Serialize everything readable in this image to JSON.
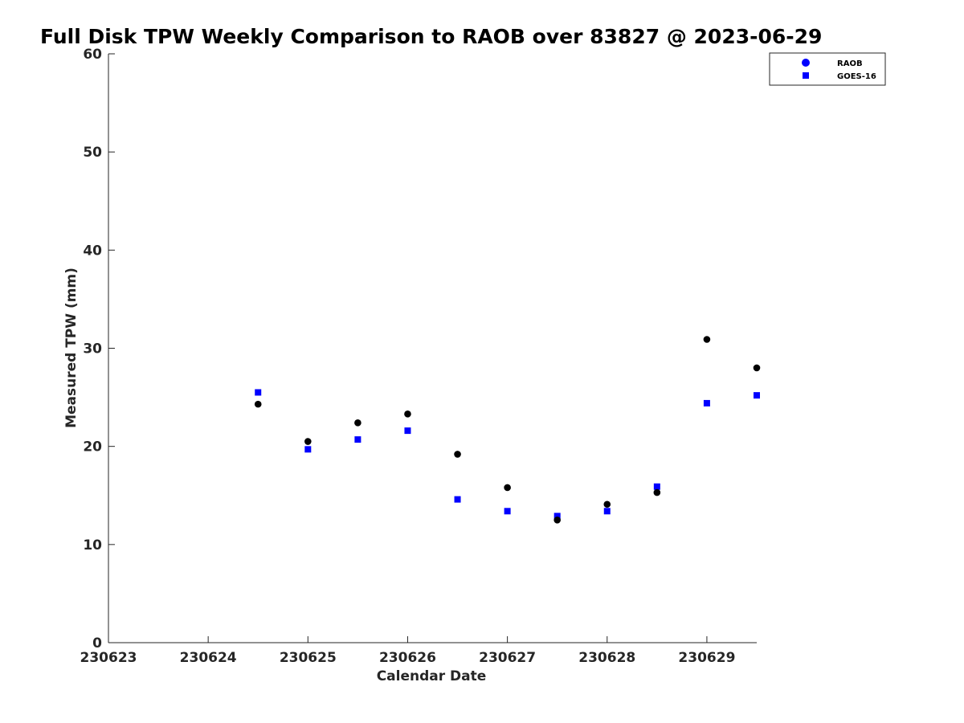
{
  "chart_data": {
    "type": "scatter",
    "title": "Full Disk TPW Weekly Comparison to RAOB over 83827 @ 2023-06-29",
    "xlabel": "Calendar Date",
    "ylabel": "Measured TPW (mm)",
    "xlim": [
      0,
      6.5
    ],
    "ylim": [
      0,
      60
    ],
    "x_ticks": [
      {
        "value": 0,
        "label": "230623"
      },
      {
        "value": 1,
        "label": "230624"
      },
      {
        "value": 2,
        "label": "230625"
      },
      {
        "value": 3,
        "label": "230626"
      },
      {
        "value": 4,
        "label": "230627"
      },
      {
        "value": 5,
        "label": "230628"
      },
      {
        "value": 6,
        "label": "230629"
      }
    ],
    "y_ticks": [
      0,
      10,
      20,
      30,
      40,
      50,
      60
    ],
    "legend_position": "top-right",
    "series": [
      {
        "name": "RAOB",
        "marker": "circle",
        "color": "#000000",
        "legend_color": "#0000ff",
        "points": [
          {
            "x": 1.5,
            "y": 24.3
          },
          {
            "x": 2.0,
            "y": 20.5
          },
          {
            "x": 2.5,
            "y": 22.4
          },
          {
            "x": 3.0,
            "y": 23.3
          },
          {
            "x": 3.5,
            "y": 19.2
          },
          {
            "x": 4.0,
            "y": 15.8
          },
          {
            "x": 4.5,
            "y": 12.5
          },
          {
            "x": 5.0,
            "y": 14.1
          },
          {
            "x": 5.5,
            "y": 15.3
          },
          {
            "x": 6.0,
            "y": 30.9
          },
          {
            "x": 6.5,
            "y": 28.0
          }
        ]
      },
      {
        "name": "GOES-16",
        "marker": "square",
        "color": "#0000ff",
        "legend_color": "#0000ff",
        "points": [
          {
            "x": 1.5,
            "y": 25.5
          },
          {
            "x": 2.0,
            "y": 19.7
          },
          {
            "x": 2.5,
            "y": 20.7
          },
          {
            "x": 3.0,
            "y": 21.6
          },
          {
            "x": 3.5,
            "y": 14.6
          },
          {
            "x": 4.0,
            "y": 13.4
          },
          {
            "x": 4.5,
            "y": 12.9
          },
          {
            "x": 5.0,
            "y": 13.4
          },
          {
            "x": 5.5,
            "y": 15.9
          },
          {
            "x": 6.0,
            "y": 24.4
          },
          {
            "x": 6.5,
            "y": 25.2
          }
        ]
      }
    ]
  }
}
